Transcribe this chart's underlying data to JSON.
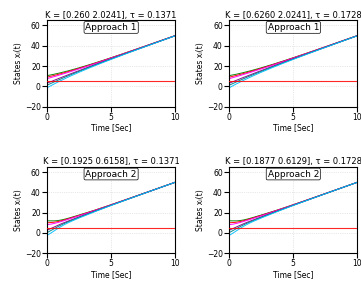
{
  "titles": [
    "K = [0.260 2.0241], τ = 0.1371",
    "K = [0.6260 2.0241], τ = 0.1728",
    "K = [0.1925 0.6158], τ = 0.1371",
    "K = [0.1877 0.6129], τ = 0.1728"
  ],
  "approach_labels": [
    "Approach 1",
    "Approach 1",
    "Approach 2",
    "Approach 2"
  ],
  "xlabel": "Time [Sec]",
  "ylabel": "States xᵢ(t)",
  "ylim": [
    -20,
    65
  ],
  "xlim": [
    0,
    10
  ],
  "yticks": [
    -20,
    0,
    20,
    40,
    60
  ],
  "xticks": [
    0,
    5,
    10
  ],
  "title_fontsize": 6.0,
  "label_fontsize": 5.5,
  "tick_fontsize": 5.5,
  "approach_fontsize": 6.5,
  "background_color": "#ffffff",
  "grid_color": "#c8c8c8",
  "line_colors": [
    "#007f00",
    "#ff0000",
    "#ff00ff",
    "#800080",
    "#008080",
    "#00bfff"
  ],
  "consensus_color": "#ff0000",
  "consensus_y": 5.0,
  "slope": 4.5,
  "x0_positions": [
    10.5,
    9.0,
    7.5,
    3.0,
    1.0,
    -1.5
  ],
  "n_agents": 6
}
